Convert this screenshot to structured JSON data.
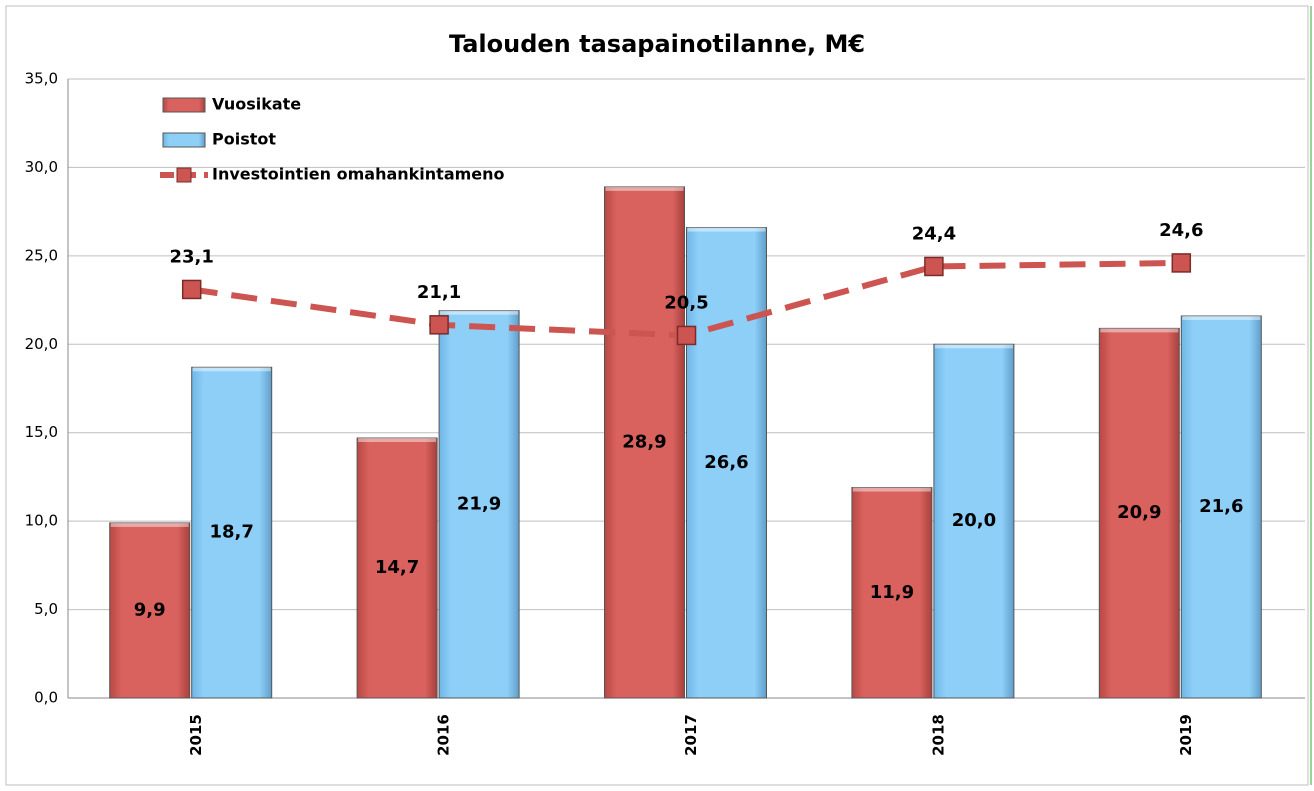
{
  "chart_data": {
    "type": "bar_line",
    "title": "Talouden tasapainotilanne, M€",
    "categories": [
      "2015",
      "2016",
      "2017",
      "2018",
      "2019"
    ],
    "series": [
      {
        "name": "Vuosikate",
        "type": "bar",
        "color": "#d9625e",
        "values": [
          9.9,
          14.7,
          28.9,
          11.9,
          20.9
        ],
        "value_labels": [
          "9,9",
          "14,7",
          "28,9",
          "11,9",
          "20,9"
        ]
      },
      {
        "name": "Poistot",
        "type": "bar",
        "color": "#8ecff8",
        "values": [
          18.7,
          21.9,
          26.6,
          20.0,
          21.6
        ],
        "value_labels": [
          "18,7",
          "21,9",
          "26,6",
          "20,0",
          "21,6"
        ]
      },
      {
        "name": "Investointien omahankintameno",
        "type": "line",
        "color": "#cc5451",
        "values": [
          23.1,
          21.1,
          20.5,
          24.4,
          24.6
        ],
        "value_labels": [
          "23,1",
          "21,1",
          "20,5",
          "24,4",
          "24,6"
        ]
      }
    ],
    "ylim": [
      0,
      35
    ],
    "yticks": [
      {
        "value": 0,
        "label": "0,0"
      },
      {
        "value": 5,
        "label": "5,0"
      },
      {
        "value": 10,
        "label": "10,0"
      },
      {
        "value": 15,
        "label": "15,0"
      },
      {
        "value": 20,
        "label": "20,0"
      },
      {
        "value": 25,
        "label": "25,0"
      },
      {
        "value": 30,
        "label": "30,0"
      },
      {
        "value": 35,
        "label": "35,0"
      }
    ],
    "grid": true,
    "legend": "top-left"
  }
}
